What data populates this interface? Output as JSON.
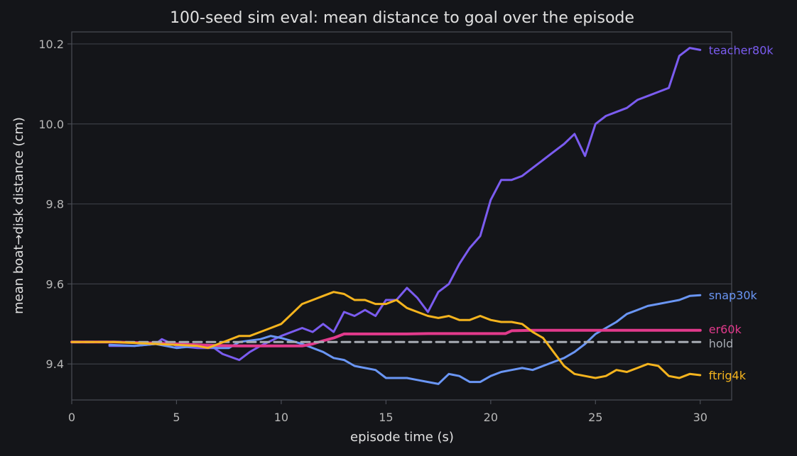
{
  "colors": {
    "background": "#141519",
    "axis": "#4a4d55",
    "grid": "#3a3d45",
    "text": "#d8d8d8",
    "tick_text": "#b8b8b8"
  },
  "chart_data": {
    "type": "line",
    "title": "100-seed sim eval: mean distance to goal over the episode",
    "xlabel": "episode time (s)",
    "ylabel": "mean boat→disk distance (cm)",
    "xlim": [
      0,
      31.5
    ],
    "ylim": [
      9.31,
      10.23
    ],
    "xticks": [
      0,
      5,
      10,
      15,
      20,
      25,
      30
    ],
    "yticks": [
      9.4,
      9.6,
      9.8,
      10.0,
      10.2
    ],
    "xtick_labels": [
      "0",
      "5",
      "10",
      "15",
      "20",
      "25",
      "30"
    ],
    "ytick_labels": [
      "9.4",
      "9.6",
      "9.8",
      "10.0",
      "10.2"
    ],
    "grid": "horizontal",
    "legend": "direct labels at right end of each line",
    "series": [
      {
        "name": "teacher80k",
        "color": "#7b5cf0",
        "dashed": false,
        "x": [
          1.8,
          3,
          4,
          4.3,
          5,
          6,
          6.8,
          7.2,
          8,
          8.5,
          9,
          10,
          11,
          11.5,
          12,
          12.5,
          13,
          13.5,
          14,
          14.5,
          15,
          15.5,
          16,
          16.5,
          17,
          17.5,
          18,
          18.5,
          19,
          19.5,
          20,
          20.5,
          21,
          21.5,
          22,
          22.5,
          23,
          23.5,
          24,
          24.5,
          25,
          25.5,
          26,
          26.5,
          27,
          27.5,
          28,
          28.5,
          29,
          29.5,
          30
        ],
        "y": [
          9.445,
          9.445,
          9.45,
          9.462,
          9.445,
          9.44,
          9.44,
          9.425,
          9.41,
          9.43,
          9.445,
          9.47,
          9.49,
          9.48,
          9.5,
          9.48,
          9.53,
          9.52,
          9.535,
          9.52,
          9.56,
          9.56,
          9.59,
          9.565,
          9.53,
          9.58,
          9.6,
          9.65,
          9.69,
          9.72,
          9.81,
          9.86,
          9.86,
          9.87,
          9.89,
          9.91,
          9.93,
          9.95,
          9.975,
          9.92,
          10.0,
          10.02,
          10.03,
          10.04,
          10.06,
          10.07,
          10.08,
          10.09,
          10.17,
          10.19,
          10.185
        ]
      },
      {
        "name": "snap30k",
        "color": "#6a96f5",
        "dashed": false,
        "x": [
          1.8,
          3,
          4,
          5,
          6,
          7,
          7.5,
          8,
          9,
          9.5,
          10,
          11,
          12,
          12.5,
          13,
          13.5,
          14,
          14.5,
          15,
          16,
          16.5,
          17,
          17.5,
          18,
          18.5,
          19,
          19.5,
          20,
          20.5,
          21,
          21.5,
          22,
          22.5,
          23,
          23.5,
          24,
          24.5,
          25,
          25.5,
          26,
          26.5,
          27,
          27.5,
          28,
          28.5,
          29,
          29.5,
          30
        ],
        "y": [
          9.448,
          9.445,
          9.45,
          9.44,
          9.445,
          9.44,
          9.44,
          9.455,
          9.462,
          9.47,
          9.465,
          9.45,
          9.43,
          9.415,
          9.41,
          9.395,
          9.39,
          9.385,
          9.365,
          9.365,
          9.36,
          9.355,
          9.35,
          9.375,
          9.37,
          9.355,
          9.355,
          9.37,
          9.38,
          9.385,
          9.39,
          9.385,
          9.395,
          9.405,
          9.415,
          9.43,
          9.45,
          9.475,
          9.49,
          9.505,
          9.525,
          9.535,
          9.545,
          9.55,
          9.555,
          9.56,
          9.57,
          9.572
        ]
      },
      {
        "name": "er60k",
        "color": "#e23a8c",
        "dashed": false,
        "x": [
          0,
          2,
          4,
          5,
          6,
          7,
          8,
          9,
          10,
          11,
          11.5,
          12,
          12.5,
          13,
          14,
          15,
          16,
          17,
          18,
          19,
          20,
          20.7,
          21,
          22,
          23,
          24,
          25,
          26,
          27,
          28,
          29,
          30
        ],
        "y": [
          9.455,
          9.455,
          9.452,
          9.45,
          9.448,
          9.446,
          9.445,
          9.445,
          9.445,
          9.445,
          9.45,
          9.458,
          9.465,
          9.475,
          9.475,
          9.475,
          9.475,
          9.476,
          9.476,
          9.476,
          9.476,
          9.476,
          9.483,
          9.484,
          9.484,
          9.484,
          9.484,
          9.484,
          9.484,
          9.484,
          9.484,
          9.484
        ]
      },
      {
        "name": "hold",
        "color": "#a8acb4",
        "dashed": true,
        "x": [
          0,
          30
        ],
        "y": [
          9.455,
          9.455
        ]
      },
      {
        "name": "ftrig4k",
        "color": "#f5b41e",
        "dashed": false,
        "x": [
          0,
          2,
          4,
          5,
          6,
          6.5,
          7,
          7.5,
          8,
          8.5,
          9,
          9.5,
          10,
          10.5,
          11,
          11.5,
          12,
          12.5,
          13,
          13.5,
          14,
          14.5,
          15,
          15.5,
          16,
          16.5,
          17,
          17.5,
          18,
          18.5,
          19,
          19.5,
          20,
          20.5,
          21,
          21.5,
          22,
          22.5,
          23,
          23.5,
          24,
          24.5,
          25,
          25.5,
          26,
          26.5,
          27,
          27.5,
          28,
          28.5,
          29,
          29.5,
          30
        ],
        "y": [
          9.455,
          9.455,
          9.45,
          9.448,
          9.445,
          9.44,
          9.45,
          9.46,
          9.47,
          9.47,
          9.48,
          9.49,
          9.5,
          9.525,
          9.55,
          9.56,
          9.57,
          9.58,
          9.575,
          9.56,
          9.56,
          9.55,
          9.55,
          9.56,
          9.54,
          9.53,
          9.52,
          9.515,
          9.52,
          9.51,
          9.51,
          9.52,
          9.51,
          9.505,
          9.505,
          9.5,
          9.48,
          9.465,
          9.43,
          9.395,
          9.375,
          9.37,
          9.365,
          9.37,
          9.385,
          9.38,
          9.39,
          9.4,
          9.395,
          9.37,
          9.365,
          9.375,
          9.372
        ]
      }
    ]
  }
}
